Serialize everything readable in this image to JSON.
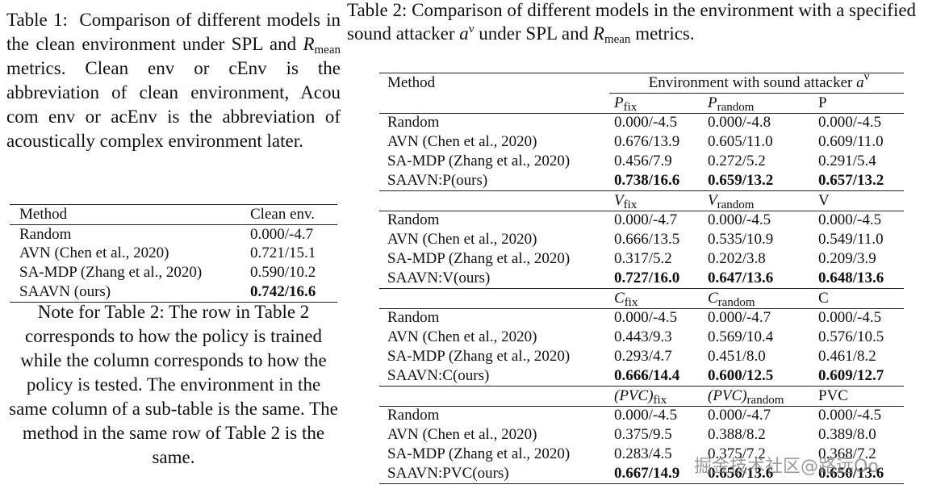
{
  "table1": {
    "caption": {
      "label": "Table 1:",
      "text_before": "Comparison of different models in the clean environment under SPL and",
      "symbol": "R",
      "subscript": "mean",
      "text_after": "metrics. Clean env or cEnv is the abbreviation of clean environment, Acou com env or acEnv is the abbreviation of acoustically complex environment later."
    },
    "header": [
      "Method",
      "Clean env."
    ],
    "rows": [
      [
        "Random",
        "0.000/-4.7"
      ],
      [
        "AVN (Chen et al., 2020)",
        "0.721/15.1"
      ],
      [
        "SA-MDP (Zhang et al., 2020)",
        "0.590/10.2"
      ],
      [
        "SAAVN (ours)",
        "0.742/16.6"
      ]
    ]
  },
  "note": "Note for Table 2: The row in Table 2 corresponds to how the policy is trained while the column corresponds to how the policy is tested. The environment in the same column of a sub-table is the same. The method in the same row of Table 2 is the same.",
  "table2": {
    "caption": {
      "label": "Table 2:",
      "text_before": "Comparison of different models in the environment with a specified sound attacker",
      "symbol": "a",
      "superscript": "ν",
      "text_middle": "under SPL and",
      "symbol2": "R",
      "subscript": "mean",
      "text_after": "metrics."
    },
    "header": {
      "method": "Method",
      "environment": "Environment with sound attacker",
      "symbol": "a",
      "superscript": "ν"
    },
    "blocks": [
      {
        "columns": [
          {
            "symbol": "P",
            "subscript": "fix"
          },
          {
            "symbol": "P",
            "subscript": "random"
          },
          {
            "text": "P"
          }
        ],
        "rows": [
          [
            "Random",
            "0.000/-4.5",
            "0.000/-4.8",
            "0.000/-4.5"
          ],
          [
            "AVN (Chen et al., 2020)",
            "0.676/13.9",
            "0.605/11.0",
            "0.609/11.0"
          ],
          [
            "SA-MDP (Zhang et al., 2020)",
            "0.456/7.9",
            "0.272/5.2",
            "0.291/5.4"
          ],
          [
            "SAAVN:P(ours)",
            "0.738/16.6",
            "0.659/13.2",
            "0.657/13.2"
          ]
        ]
      },
      {
        "columns": [
          {
            "symbol": "V",
            "subscript": "fix"
          },
          {
            "symbol": "V",
            "subscript": "random"
          },
          {
            "text": "V"
          }
        ],
        "rows": [
          [
            "Random",
            "0.000/-4.7",
            "0.000/-4.5",
            "0.000/-4.5"
          ],
          [
            "AVN (Chen et al., 2020)",
            "0.666/13.5",
            "0.535/10.9",
            "0.549/11.0"
          ],
          [
            "SA-MDP (Zhang et al., 2020)",
            "0.317/5.2",
            "0.202/3.8",
            "0.209/3.9"
          ],
          [
            "SAAVN:V(ours)",
            "0.727/16.0",
            "0.647/13.6",
            "0.648/13.6"
          ]
        ]
      },
      {
        "columns": [
          {
            "symbol": "C",
            "subscript": "fix"
          },
          {
            "symbol": "C",
            "subscript": "random"
          },
          {
            "text": "C"
          }
        ],
        "rows": [
          [
            "Random",
            "0.000/-4.5",
            "0.000/-4.7",
            "0.000/-4.5"
          ],
          [
            "AVN (Chen et al., 2020)",
            "0.443/9.3",
            "0.569/10.4",
            "0.576/10.5"
          ],
          [
            "SA-MDP (Zhang et al., 2020)",
            "0.293/4.7",
            "0.451/8.0",
            "0.461/8.2"
          ],
          [
            "SAAVN:C(ours)",
            "0.666/14.4",
            "0.600/12.5",
            "0.609/12.7"
          ]
        ]
      },
      {
        "columns": [
          {
            "symbol": "(PVC)",
            "subscript": "fix"
          },
          {
            "symbol": "(PVC)",
            "subscript": "random"
          },
          {
            "text": "PVC"
          }
        ],
        "rows": [
          [
            "Random",
            "0.000/-4.5",
            "0.000/-4.7",
            "0.000/-4.5"
          ],
          [
            "AVN (Chen et al., 2020)",
            "0.375/9.5",
            "0.388/8.2",
            "0.389/8.0"
          ],
          [
            "SA-MDP (Zhang et al., 2020)",
            "0.283/4.5",
            "0.375/7.2",
            "0.368/7.2"
          ],
          [
            "SAAVN:PVC(ours)",
            "0.667/14.9",
            "0.656/13.6",
            "0.650/13.6"
          ]
        ]
      }
    ]
  },
  "watermark": "掘金技术社区@路远Oo"
}
